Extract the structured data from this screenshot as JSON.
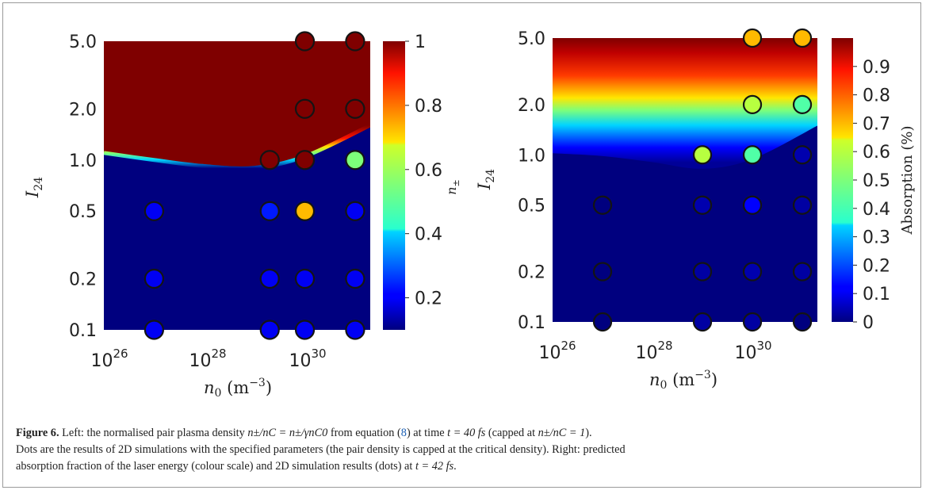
{
  "figure": {
    "caption": {
      "label": "Figure 6.",
      "line1_a": "Left: the normalised pair plasma density ",
      "expr1": "n±/nC = n±/γnC0",
      "line1_b": " from equation (",
      "eq_ref": "8",
      "line1_c": ") at time ",
      "time_left": "t = 40 fs",
      "line1_d": " (capped at ",
      "cap": "n±/nC = 1",
      "line1_e": ").",
      "line2": "Dots are the results of 2D simulations with the specified parameters (the pair density is capped at the critical density). Right: predicted",
      "line3_a": "absorption fraction of the laser energy (colour scale) and 2D simulation results (dots) at ",
      "time_right": "t = 42 fs",
      "line3_b": "."
    }
  },
  "chart_data": [
    {
      "type": "heatmap",
      "panel": "left",
      "xlabel": "n0 (m^-3)",
      "ylabel": "I24",
      "x_scale": "log",
      "y_scale": "log",
      "x_ticks": [
        "10^26",
        "10^28",
        "10^30"
      ],
      "y_ticks": [
        "0.1",
        "0.2",
        "0.5",
        "1.0",
        "2.0",
        "5.0"
      ],
      "xlim": [
        1e+26,
        2e+31
      ],
      "ylim": [
        0.1,
        5.0
      ],
      "colorbar": {
        "label": "n±",
        "ticks": [
          "0.2",
          "0.4",
          "0.6",
          "0.8",
          "1"
        ],
        "range": [
          0.1,
          1.0
        ]
      },
      "boundary": {
        "description": "transition from ~0.1 (blue) to 1 (dark red)",
        "n0": [
          1e+26,
          1e+27,
          1e+28,
          1e+29,
          1e+30,
          2e+31
        ],
        "I24": [
          1.1,
          1.0,
          0.92,
          0.9,
          1.05,
          1.6
        ]
      },
      "points": [
        {
          "n0": 1e+27,
          "I24": 0.1,
          "value": 0.1
        },
        {
          "n0": 1e+27,
          "I24": 0.2,
          "value": 0.1
        },
        {
          "n0": 1e+27,
          "I24": 0.5,
          "value": 0.1
        },
        {
          "n0": 2e+29,
          "I24": 0.1,
          "value": 0.1
        },
        {
          "n0": 2e+29,
          "I24": 0.2,
          "value": 0.1
        },
        {
          "n0": 2e+29,
          "I24": 0.5,
          "value": 0.15
        },
        {
          "n0": 2e+29,
          "I24": 1.0,
          "value": 1.0
        },
        {
          "n0": 1e+30,
          "I24": 0.1,
          "value": 0.1
        },
        {
          "n0": 1e+30,
          "I24": 0.2,
          "value": 0.1
        },
        {
          "n0": 1e+30,
          "I24": 0.5,
          "value": 0.7
        },
        {
          "n0": 1e+30,
          "I24": 1.0,
          "value": 1.0
        },
        {
          "n0": 1e+30,
          "I24": 2.0,
          "value": 1.0
        },
        {
          "n0": 1e+30,
          "I24": 5.0,
          "value": 1.0
        },
        {
          "n0": 1e+31,
          "I24": 0.1,
          "value": 0.1
        },
        {
          "n0": 1e+31,
          "I24": 0.2,
          "value": 0.1
        },
        {
          "n0": 1e+31,
          "I24": 0.5,
          "value": 0.1
        },
        {
          "n0": 1e+31,
          "I24": 1.0,
          "value": 0.5
        },
        {
          "n0": 1e+31,
          "I24": 2.0,
          "value": 1.0
        },
        {
          "n0": 1e+31,
          "I24": 5.0,
          "value": 1.0
        }
      ]
    },
    {
      "type": "heatmap",
      "panel": "right",
      "xlabel": "n0 (m^-3)",
      "ylabel": "I24",
      "x_scale": "log",
      "y_scale": "log",
      "x_ticks": [
        "10^26",
        "10^28",
        "10^30"
      ],
      "y_ticks": [
        "0.1",
        "0.2",
        "0.5",
        "1.0",
        "2.0",
        "5.0"
      ],
      "xlim": [
        1e+26,
        2e+31
      ],
      "ylim": [
        0.1,
        5.0
      ],
      "colorbar": {
        "label": "Absorption (%)",
        "ticks": [
          "0",
          "0.1",
          "0.2",
          "0.3",
          "0.4",
          "0.5",
          "0.6",
          "0.7",
          "0.8",
          "0.9"
        ],
        "range": [
          0,
          1.0
        ]
      },
      "boundary": {
        "description": "smooth transition from ~0 (blue) to ~1 (dark red)",
        "n0": [
          1e+26,
          1e+27,
          1e+28,
          1e+29,
          1e+30,
          2e+31
        ],
        "I24": [
          1.3,
          1.25,
          1.15,
          1.05,
          1.2,
          1.9
        ]
      },
      "points": [
        {
          "n0": 1e+27,
          "I24": 0.1,
          "value": 0.0
        },
        {
          "n0": 1e+27,
          "I24": 0.2,
          "value": 0.0
        },
        {
          "n0": 1e+27,
          "I24": 0.5,
          "value": 0.0
        },
        {
          "n0": 1e+29,
          "I24": 0.1,
          "value": 0.03
        },
        {
          "n0": 1e+29,
          "I24": 0.2,
          "value": 0.03
        },
        {
          "n0": 1e+29,
          "I24": 0.5,
          "value": 0.04
        },
        {
          "n0": 1e+29,
          "I24": 1.0,
          "value": 0.6
        },
        {
          "n0": 1e+30,
          "I24": 0.1,
          "value": 0.03
        },
        {
          "n0": 1e+30,
          "I24": 0.2,
          "value": 0.04
        },
        {
          "n0": 1e+30,
          "I24": 0.5,
          "value": 0.12
        },
        {
          "n0": 1e+30,
          "I24": 1.0,
          "value": 0.42
        },
        {
          "n0": 1e+30,
          "I24": 2.0,
          "value": 0.6
        },
        {
          "n0": 1e+30,
          "I24": 5.0,
          "value": 0.7
        },
        {
          "n0": 1e+31,
          "I24": 0.1,
          "value": 0.0
        },
        {
          "n0": 1e+31,
          "I24": 0.2,
          "value": 0.03
        },
        {
          "n0": 1e+31,
          "I24": 0.5,
          "value": 0.03
        },
        {
          "n0": 1e+31,
          "I24": 1.0,
          "value": 0.04
        },
        {
          "n0": 1e+31,
          "I24": 2.0,
          "value": 0.42
        },
        {
          "n0": 1e+31,
          "I24": 5.0,
          "value": 0.7
        }
      ]
    }
  ]
}
